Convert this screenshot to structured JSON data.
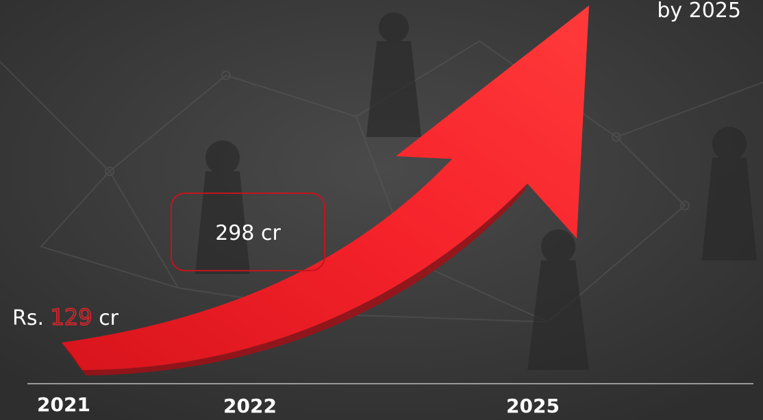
{
  "labels": {
    "start": {
      "prefix": "Rs.",
      "amount": "129",
      "unit": "cr"
    },
    "middle": "298 cr",
    "target": "by 2025"
  },
  "years": [
    "2021",
    "2022",
    "2025"
  ]
}
